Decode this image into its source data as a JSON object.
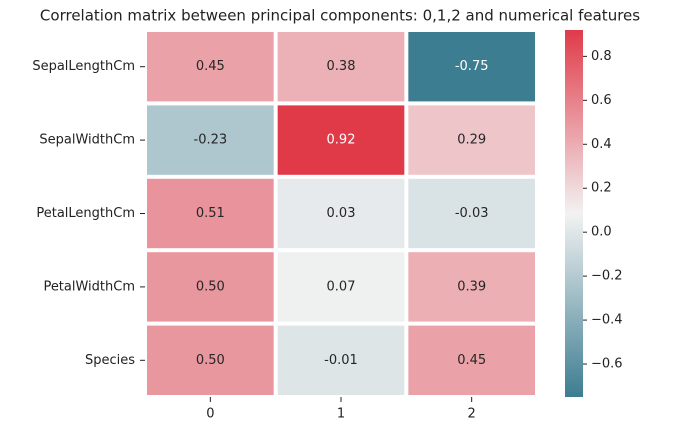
{
  "chart_data": {
    "type": "heatmap",
    "title": "Correlation matrix between principal components: 0,1,2 and numerical features",
    "x": [
      "0",
      "1",
      "2"
    ],
    "y": [
      "SepalLengthCm",
      "SepalWidthCm",
      "PetalLengthCm",
      "PetalWidthCm",
      "Species"
    ],
    "values": [
      [
        0.45,
        0.38,
        -0.75
      ],
      [
        -0.23,
        0.92,
        0.29
      ],
      [
        0.51,
        0.03,
        -0.03
      ],
      [
        0.5,
        0.07,
        0.39
      ],
      [
        0.5,
        -0.01,
        0.45
      ]
    ],
    "value_labels": [
      [
        "0.45",
        "0.38",
        "-0.75"
      ],
      [
        "-0.23",
        "0.92",
        "0.29"
      ],
      [
        "0.51",
        "0.03",
        "-0.03"
      ],
      [
        "0.50",
        "0.07",
        "0.39"
      ],
      [
        "0.50",
        "-0.01",
        "0.45"
      ]
    ],
    "zlim": [
      -0.75,
      0.92
    ],
    "zticks": [
      {
        "value": -0.6,
        "label": "−0.6"
      },
      {
        "value": -0.4,
        "label": "−0.4"
      },
      {
        "value": -0.2,
        "label": "−0.2"
      },
      {
        "value": 0,
        "label": "0.0"
      },
      0.2,
      0.4,
      0.6,
      0.8
    ],
    "colors": [
      "#3d7d91",
      "#f2f2f2",
      "#e03a49"
    ]
  }
}
